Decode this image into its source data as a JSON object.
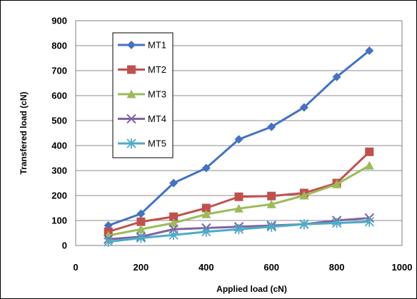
{
  "chart_data": {
    "type": "line",
    "xlabel": "Applied load  (cN)",
    "ylabel": "Transfered load  (cN)",
    "xlim": [
      0,
      1000
    ],
    "ylim": [
      0,
      900
    ],
    "xticks": [
      0,
      200,
      400,
      600,
      800,
      1000
    ],
    "yticks": [
      0,
      100,
      200,
      300,
      400,
      500,
      600,
      700,
      800,
      900
    ],
    "grid": "horizontal",
    "legend_position": "top-left",
    "x": [
      100,
      200,
      300,
      400,
      500,
      600,
      700,
      800,
      900
    ],
    "series": [
      {
        "name": "MT1",
        "color": "#4472C4",
        "marker": "diamond",
        "values": [
          80,
          127,
          250,
          310,
          425,
          475,
          553,
          675,
          780
        ]
      },
      {
        "name": "MT2",
        "color": "#C0504D",
        "marker": "square",
        "values": [
          55,
          95,
          115,
          150,
          195,
          198,
          210,
          250,
          375
        ]
      },
      {
        "name": "MT3",
        "color": "#9BBB59",
        "marker": "triangle",
        "values": [
          40,
          65,
          90,
          125,
          148,
          165,
          200,
          245,
          320
        ]
      },
      {
        "name": "MT4",
        "color": "#8064A2",
        "marker": "x",
        "values": [
          25,
          35,
          65,
          70,
          75,
          80,
          85,
          100,
          110
        ]
      },
      {
        "name": "MT5",
        "color": "#4BACC6",
        "marker": "star",
        "values": [
          15,
          30,
          42,
          55,
          65,
          75,
          85,
          90,
          95
        ]
      }
    ]
  }
}
